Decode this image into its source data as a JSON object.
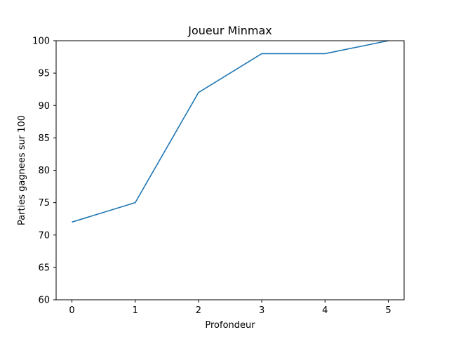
{
  "chart_data": {
    "type": "line",
    "title": "Joueur Minmax",
    "xlabel": "Profondeur",
    "ylabel": "Parties gagnees sur 100",
    "x": [
      0,
      1,
      2,
      3,
      4,
      5
    ],
    "series": [
      {
        "values": [
          72,
          75,
          92,
          98,
          98,
          100
        ],
        "color": "#1f77b4"
      }
    ],
    "xlim": [
      -0.25,
      5.25
    ],
    "ylim": [
      60,
      100
    ],
    "xticks": [
      0,
      1,
      2,
      3,
      4,
      5
    ],
    "yticks": [
      60,
      65,
      70,
      75,
      80,
      85,
      90,
      95,
      100
    ],
    "grid": false,
    "legend": "none"
  }
}
